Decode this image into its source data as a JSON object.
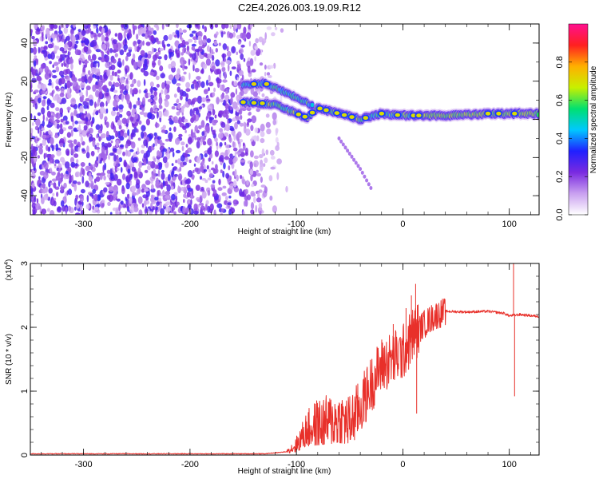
{
  "title": "C2E4.2026.003.19.09.R12",
  "chart_data": [
    {
      "type": "heatmap",
      "title": "C2E4.2026.003.19.09.R12",
      "xlabel": "Height of straight line (km)",
      "ylabel": "Frequency (Hz)",
      "xlim": [
        -350,
        128
      ],
      "ylim": [
        -50,
        50
      ],
      "xticks": [
        -300,
        -200,
        -100,
        0,
        100
      ],
      "yticks": [
        -40,
        -20,
        0,
        20,
        40
      ],
      "colorbar": {
        "label": "Normalized spectral amplitude",
        "range": [
          0.0,
          1.0
        ],
        "ticks": [
          "0.0",
          "0.2",
          "0.4",
          "0.6",
          "0.8"
        ],
        "colors": [
          "#ffffff",
          "#c9a0f0",
          "#7a2ae0",
          "#2020ff",
          "#00c8ff",
          "#00e070",
          "#c8f000",
          "#ffb000",
          "#ff2020",
          "#ff1090"
        ]
      },
      "features": {
        "noise_region": [
          -350,
          -125
        ],
        "main_band": [
          {
            "x": -150,
            "y": 9
          },
          {
            "x": -120,
            "y": 8
          },
          {
            "x": -100,
            "y": 3
          },
          {
            "x": -90,
            "y": 1
          },
          {
            "x": -80,
            "y": 6
          },
          {
            "x": -60,
            "y": 3
          },
          {
            "x": -40,
            "y": 0
          },
          {
            "x": -20,
            "y": 3
          },
          {
            "x": 0,
            "y": 2
          },
          {
            "x": 40,
            "y": 2
          },
          {
            "x": 80,
            "y": 3
          },
          {
            "x": 128,
            "y": 3
          }
        ],
        "upper_branch": [
          {
            "x": -150,
            "y": 18
          },
          {
            "x": -130,
            "y": 19
          },
          {
            "x": -110,
            "y": 14
          },
          {
            "x": -95,
            "y": 10
          },
          {
            "x": -85,
            "y": 7
          }
        ],
        "lower_tail": [
          {
            "x": -60,
            "y": -10
          },
          {
            "x": -50,
            "y": -18
          },
          {
            "x": -40,
            "y": -26
          },
          {
            "x": -30,
            "y": -36
          }
        ]
      }
    },
    {
      "type": "line",
      "xlabel": "Height of straight line (km)",
      "ylabel": "SNR (10 * v/v)",
      "yscale": "(x10",
      "yscale_exp": "4",
      "xlim": [
        -350,
        128
      ],
      "ylim": [
        0,
        3.0
      ],
      "xticks": [
        -300,
        -200,
        -100,
        0,
        100
      ],
      "yticks": [
        0,
        1,
        2,
        3
      ],
      "series": [
        {
          "name": "SNR",
          "color": "#e8302a",
          "trend": [
            {
              "x": -350,
              "y": 0.02
            },
            {
              "x": -130,
              "y": 0.02
            },
            {
              "x": -110,
              "y": 0.05
            },
            {
              "x": -100,
              "y": 0.15
            },
            {
              "x": -90,
              "y": 0.4
            },
            {
              "x": -80,
              "y": 0.45
            },
            {
              "x": -70,
              "y": 0.5
            },
            {
              "x": -60,
              "y": 0.55
            },
            {
              "x": -50,
              "y": 0.5
            },
            {
              "x": -40,
              "y": 0.75
            },
            {
              "x": -30,
              "y": 1.1
            },
            {
              "x": -20,
              "y": 1.4
            },
            {
              "x": -10,
              "y": 1.5
            },
            {
              "x": 0,
              "y": 1.6
            },
            {
              "x": 10,
              "y": 1.9
            },
            {
              "x": 20,
              "y": 2.05
            },
            {
              "x": 30,
              "y": 2.18
            },
            {
              "x": 40,
              "y": 2.25
            },
            {
              "x": 60,
              "y": 2.24
            },
            {
              "x": 80,
              "y": 2.25
            },
            {
              "x": 95,
              "y": 2.22
            },
            {
              "x": 100,
              "y": 2.18
            },
            {
              "x": 110,
              "y": 2.2
            },
            {
              "x": 128,
              "y": 2.17
            }
          ],
          "spikes": [
            {
              "x": 12,
              "y": 2.68
            },
            {
              "x": 13,
              "y": 0.65
            },
            {
              "x": 104,
              "y": 3.0
            },
            {
              "x": 105,
              "y": 0.92
            },
            {
              "x": -9,
              "y": 2.05
            },
            {
              "x": 3,
              "y": 2.3
            },
            {
              "x": 8,
              "y": 2.5
            }
          ]
        }
      ]
    }
  ]
}
